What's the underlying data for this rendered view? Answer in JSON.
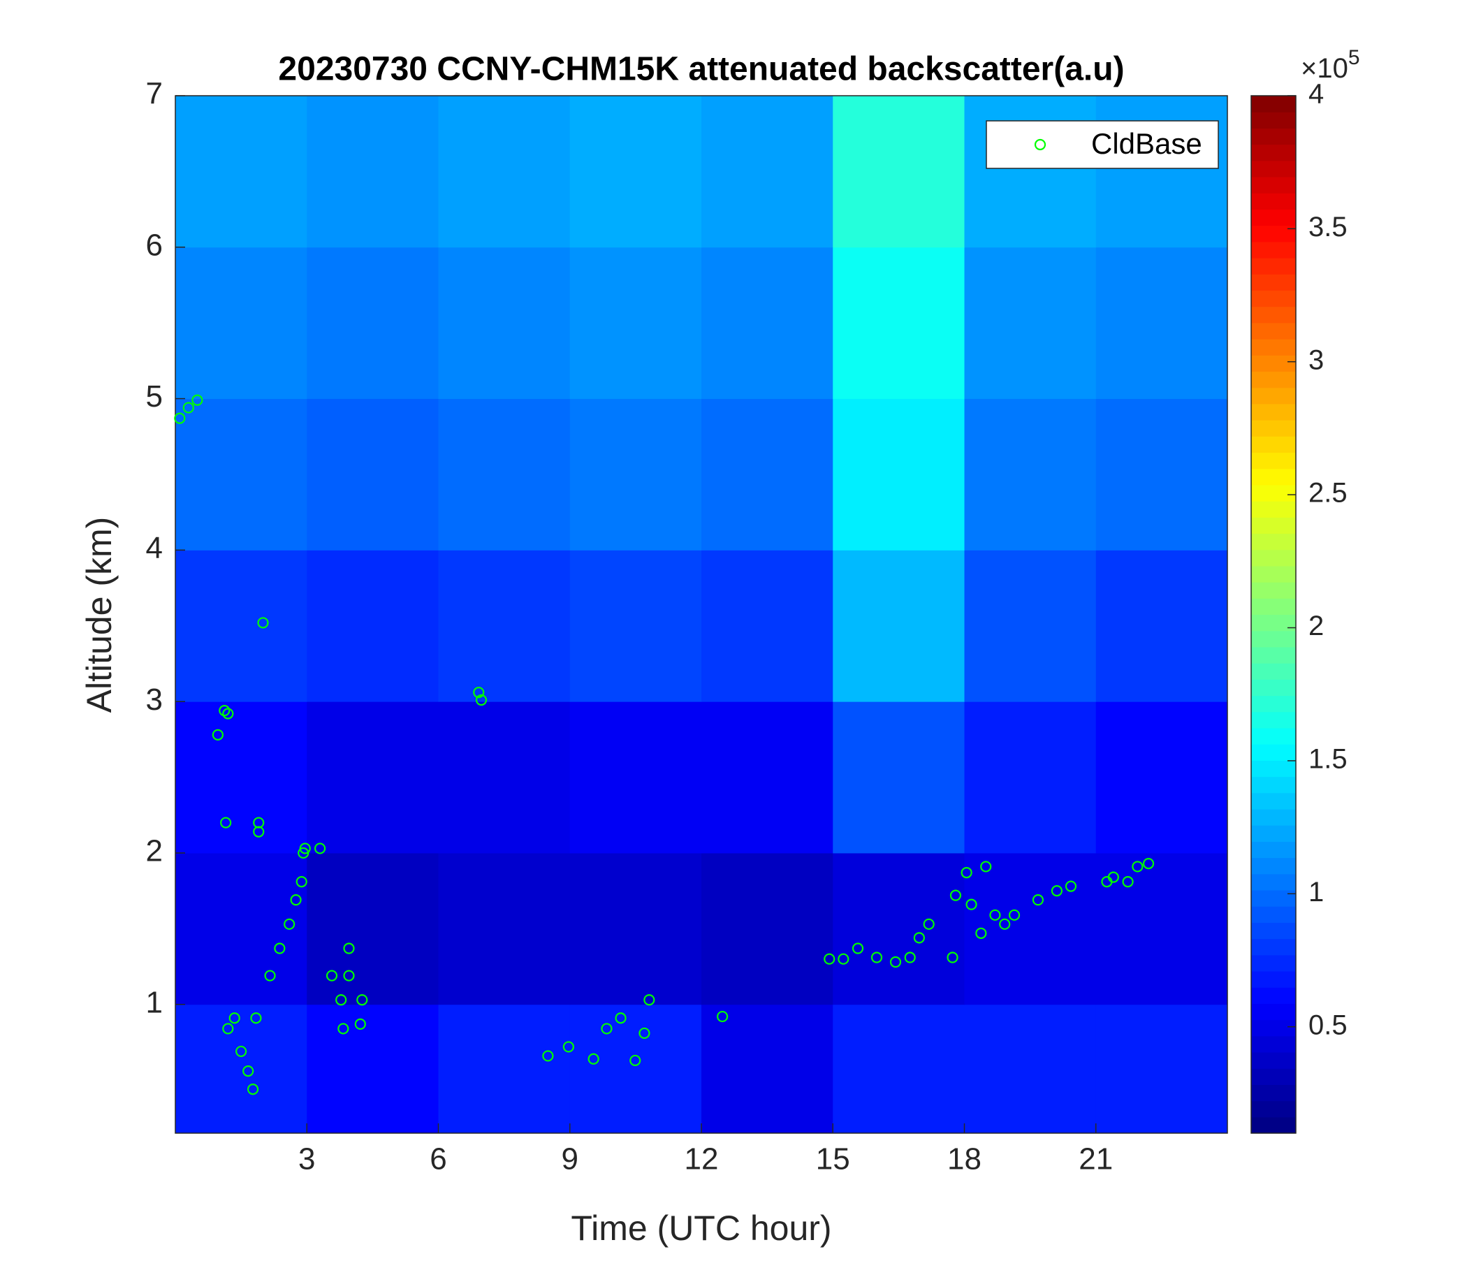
{
  "chart_data": {
    "type": "heatmap-scatter",
    "title": "20230730 CCNY-CHM15K attenuated backscatter(a.u)",
    "xlabel": "Time (UTC hour)",
    "ylabel": "Altitude (km)",
    "xlim": [
      0,
      24
    ],
    "ylim": [
      0.15,
      7
    ],
    "xticks": [
      3,
      6,
      9,
      12,
      15,
      18,
      21
    ],
    "yticks": [
      1,
      2,
      3,
      4,
      5,
      6,
      7
    ],
    "colormap": "jet",
    "clim": [
      0.1,
      4
    ],
    "cticks": [
      0.5,
      1,
      1.5,
      2,
      2.5,
      3,
      3.5,
      4
    ],
    "colorbar_multiplier_base": "×10",
    "colorbar_multiplier_exponent": "5",
    "x_edges": [
      0,
      3,
      6,
      9,
      12,
      15,
      18,
      21,
      24
    ],
    "y_edges": [
      0.15,
      1,
      2,
      3,
      4,
      5,
      6,
      7
    ],
    "z": [
      [
        0.7,
        0.6,
        0.7,
        0.7,
        0.5,
        0.7,
        0.7,
        0.7
      ],
      [
        0.5,
        0.35,
        0.4,
        0.4,
        0.35,
        0.45,
        0.5,
        0.5
      ],
      [
        0.6,
        0.5,
        0.5,
        0.55,
        0.55,
        0.9,
        0.7,
        0.6
      ],
      [
        0.8,
        0.75,
        0.8,
        0.85,
        0.8,
        1.3,
        0.9,
        0.8
      ],
      [
        1.0,
        0.95,
        1.0,
        1.05,
        1.0,
        1.5,
        1.05,
        1.0
      ],
      [
        1.1,
        1.05,
        1.1,
        1.15,
        1.1,
        1.6,
        1.15,
        1.1
      ],
      [
        1.2,
        1.15,
        1.2,
        1.25,
        1.2,
        1.7,
        1.25,
        1.2
      ]
    ],
    "series": [
      {
        "name": "CldBase",
        "color": "#00ff00",
        "x": [
          0.1,
          0.3,
          0.5,
          0.97,
          1.12,
          1.2,
          1.15,
          1.9,
          1.9,
          2.0,
          1.2,
          1.35,
          1.5,
          1.66,
          1.77,
          1.84,
          2.16,
          2.38,
          2.6,
          2.75,
          2.88,
          2.92,
          2.96,
          3.3,
          3.57,
          3.78,
          3.83,
          3.96,
          3.96,
          4.26,
          4.22,
          6.92,
          6.98,
          8.5,
          8.97,
          9.54,
          9.84,
          10.16,
          10.49,
          10.7,
          10.81,
          12.48,
          14.92,
          15.24,
          15.57,
          16.0,
          16.43,
          16.76,
          16.97,
          17.19,
          17.73,
          17.8,
          18.05,
          18.16,
          18.38,
          18.49,
          18.7,
          18.92,
          19.14,
          19.68,
          20.11,
          20.43,
          21.25,
          21.4,
          21.73,
          21.95,
          22.2
        ],
        "values": [
          4.87,
          4.94,
          4.99,
          2.78,
          2.94,
          2.92,
          2.2,
          2.2,
          2.14,
          3.52,
          0.84,
          0.91,
          0.69,
          0.56,
          0.44,
          0.91,
          1.19,
          1.37,
          1.53,
          1.69,
          1.81,
          2.0,
          2.03,
          2.03,
          1.19,
          1.03,
          0.84,
          1.37,
          1.19,
          1.03,
          0.87,
          3.06,
          3.01,
          0.66,
          0.72,
          0.64,
          0.84,
          0.91,
          0.63,
          0.81,
          1.03,
          0.92,
          1.3,
          1.3,
          1.37,
          1.31,
          1.28,
          1.31,
          1.44,
          1.53,
          1.31,
          1.72,
          1.87,
          1.66,
          1.47,
          1.91,
          1.59,
          1.53,
          1.59,
          1.69,
          1.75,
          1.78,
          1.81,
          1.84,
          1.81,
          1.91,
          1.93
        ]
      }
    ],
    "legend": "top-right"
  }
}
